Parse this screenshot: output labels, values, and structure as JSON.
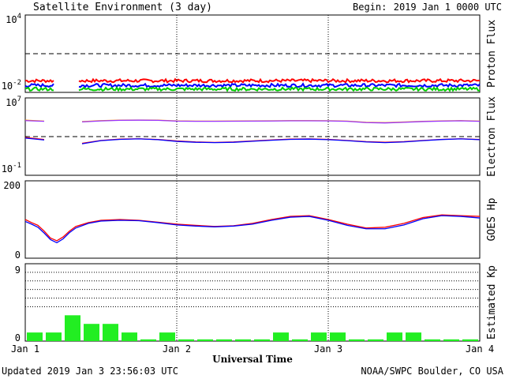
{
  "header": {
    "title": "Satellite Environment (3 day)",
    "begin_label": "Begin:",
    "begin_value": "2019 Jan 1 0000 UTC"
  },
  "footer": {
    "updated": "Updated 2019 Jan  3 23:56:03 UTC",
    "credit": "NOAA/SWPC Boulder, CO USA"
  },
  "chart_data": [
    {
      "type": "line",
      "panel": "proton",
      "ylabel": "Proton Flux",
      "scale": "log",
      "ylim": [
        0.01,
        10000
      ],
      "tick_labels": [
        {
          "base": "10",
          "exp": "4"
        },
        {
          "base": "10",
          "exp": "-2"
        }
      ],
      "threshold": 10,
      "x": [
        0,
        72
      ],
      "gap": [
        4.5,
        8.5
      ],
      "series": [
        {
          "color": "#ff0000",
          "level": 0.08
        },
        {
          "color": "#0000ff",
          "level": 0.035
        },
        {
          "color": "#00cc00",
          "level": 0.018
        }
      ]
    },
    {
      "type": "line",
      "panel": "electron",
      "ylabel": "Electron Flux",
      "scale": "log",
      "ylim": [
        0.1,
        10000000
      ],
      "tick_labels": [
        {
          "base": "10",
          "exp": "7"
        },
        {
          "base": "10",
          "exp": "-1"
        }
      ],
      "threshold": 1000,
      "x": [
        0,
        3,
        6,
        9,
        12,
        15,
        18,
        21,
        24,
        27,
        30,
        33,
        36,
        39,
        42,
        45,
        48,
        51,
        54,
        57,
        60,
        63,
        66,
        69,
        72
      ],
      "gap": [
        4.5,
        6.5
      ],
      "series": [
        {
          "color": "#ff9900",
          "values": [
            50000,
            40000,
            30000,
            35000,
            45000,
            50000,
            52000,
            50000,
            42000,
            40000,
            40000,
            41000,
            42000,
            43000,
            45000,
            45000,
            44000,
            40000,
            30000,
            28000,
            32000,
            38000,
            42000,
            45000,
            40000
          ]
        },
        {
          "color": "#9933ff",
          "values": [
            45000,
            38000,
            28000,
            33000,
            42000,
            48000,
            50000,
            48000,
            40000,
            38000,
            38000,
            39000,
            40000,
            41000,
            43000,
            43000,
            42000,
            38000,
            28000,
            26000,
            30000,
            36000,
            40000,
            43000,
            38000
          ]
        },
        {
          "color": "#ff0000",
          "values": [
            800,
            500,
            150,
            200,
            400,
            550,
            600,
            500,
            350,
            280,
            250,
            280,
            350,
            450,
            550,
            580,
            520,
            400,
            300,
            260,
            300,
            400,
            520,
            600,
            500
          ]
        },
        {
          "color": "#0000ff",
          "values": [
            700,
            450,
            120,
            180,
            380,
            520,
            580,
            480,
            320,
            260,
            240,
            260,
            330,
            420,
            520,
            550,
            480,
            380,
            280,
            240,
            280,
            380,
            500,
            580,
            480
          ]
        }
      ]
    },
    {
      "type": "line",
      "panel": "goes_hp",
      "ylabel": "GOES Hp",
      "scale": "linear",
      "ylim": [
        0,
        200
      ],
      "ticks": [
        0,
        200
      ],
      "x": [
        0,
        1,
        2,
        3,
        4,
        5,
        6,
        7,
        8,
        10,
        12,
        15,
        18,
        21,
        24,
        27,
        30,
        33,
        36,
        39,
        42,
        45,
        48,
        51,
        54,
        57,
        60,
        63,
        66,
        69,
        72
      ],
      "gap": [
        2.2,
        2.8
      ],
      "series": [
        {
          "color": "#ff0000",
          "values": [
            100,
            92,
            85,
            70,
            52,
            45,
            55,
            70,
            82,
            92,
            98,
            100,
            98,
            93,
            88,
            85,
            82,
            84,
            90,
            100,
            108,
            110,
            100,
            88,
            78,
            80,
            90,
            105,
            112,
            110,
            108
          ]
        },
        {
          "color": "#0000ff",
          "values": [
            95,
            88,
            80,
            65,
            48,
            40,
            50,
            66,
            78,
            90,
            96,
            98,
            97,
            92,
            86,
            83,
            81,
            83,
            88,
            98,
            106,
            108,
            98,
            85,
            76,
            76,
            86,
            102,
            110,
            108,
            104
          ]
        }
      ]
    },
    {
      "type": "bar",
      "panel": "kp",
      "ylabel": "Estimated Kp",
      "ylim": [
        0,
        9
      ],
      "ticks": [
        0,
        9
      ],
      "grid": [
        4,
        5,
        6,
        7,
        8,
        9
      ],
      "color": "#22ee22",
      "values": [
        1,
        1,
        3,
        2,
        2,
        1,
        0.2,
        1,
        0.2,
        0.2,
        0.2,
        0.2,
        0.2,
        1,
        0.2,
        1,
        1,
        0.2,
        0.2,
        1,
        1,
        0.2,
        0.2,
        0.2
      ]
    }
  ],
  "x_axis": {
    "label": "Universal Time",
    "ticks": [
      "Jan 1",
      "Jan 2",
      "Jan 3",
      "Jan 4"
    ]
  }
}
